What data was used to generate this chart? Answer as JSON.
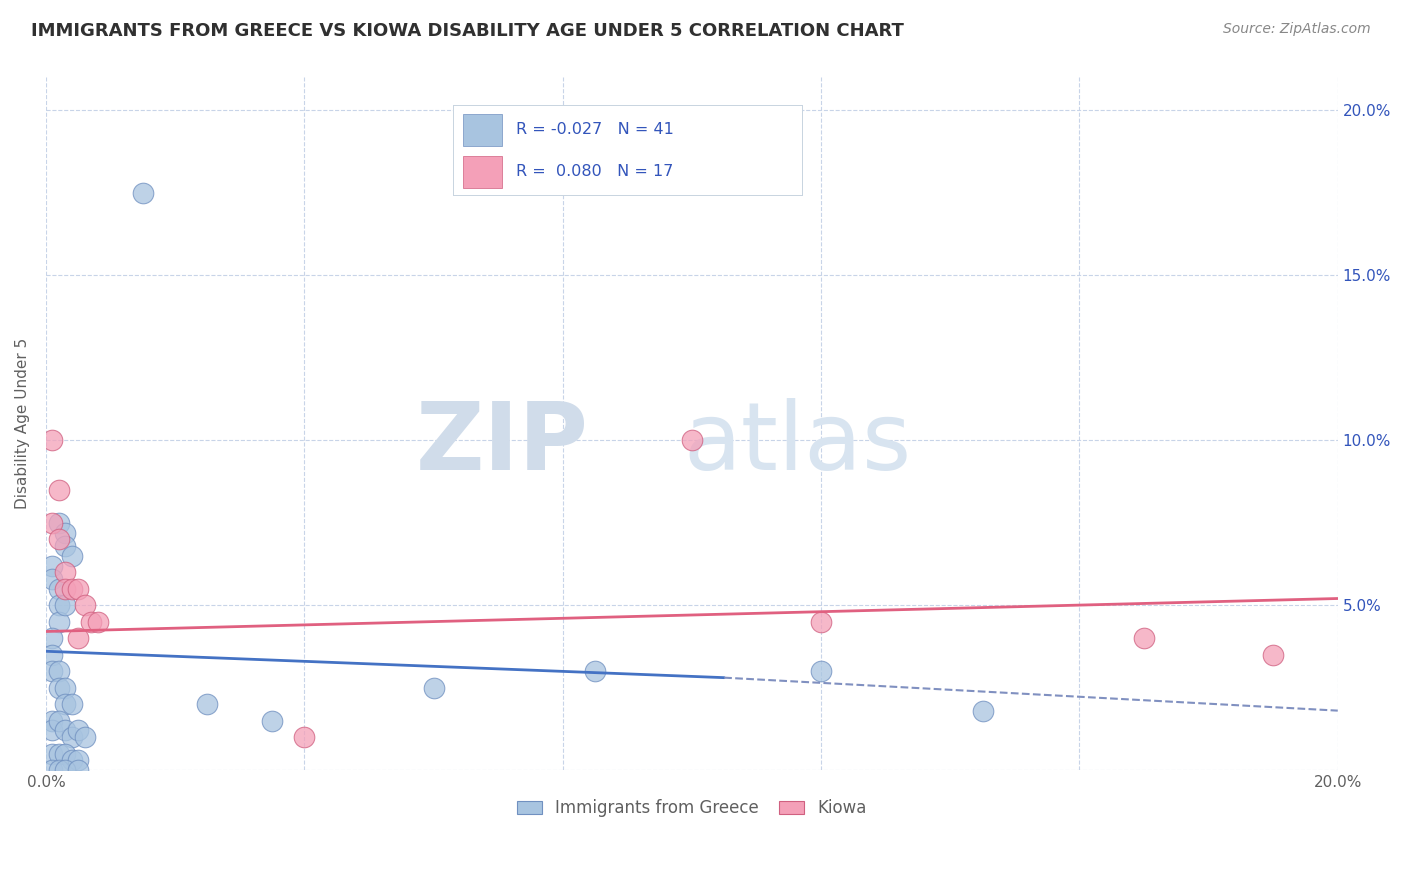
{
  "title": "IMMIGRANTS FROM GREECE VS KIOWA DISABILITY AGE UNDER 5 CORRELATION CHART",
  "source": "Source: ZipAtlas.com",
  "ylabel": "Disability Age Under 5",
  "xlim": [
    0.0,
    0.2
  ],
  "ylim": [
    0.0,
    0.21
  ],
  "x_ticks": [
    0.0,
    0.04,
    0.08,
    0.12,
    0.16,
    0.2
  ],
  "x_tick_labels": [
    "0.0%",
    "",
    "",
    "",
    "",
    "20.0%"
  ],
  "y_ticks_left": [
    0.0,
    0.05,
    0.1,
    0.15,
    0.2
  ],
  "y_tick_labels_left": [
    "",
    "",
    "",
    "",
    ""
  ],
  "y_ticks_right": [
    0.05,
    0.1,
    0.15,
    0.2
  ],
  "y_tick_labels_right": [
    "5.0%",
    "10.0%",
    "15.0%",
    "20.0%"
  ],
  "legend_bottom": [
    "Immigrants from Greece",
    "Kiowa"
  ],
  "scatter_blue": {
    "x": [
      0.015,
      0.002,
      0.003,
      0.003,
      0.004,
      0.001,
      0.001,
      0.002,
      0.002,
      0.002,
      0.003,
      0.001,
      0.001,
      0.001,
      0.002,
      0.002,
      0.003,
      0.003,
      0.004,
      0.001,
      0.001,
      0.002,
      0.003,
      0.004,
      0.005,
      0.001,
      0.002,
      0.003,
      0.004,
      0.005,
      0.006,
      0.001,
      0.002,
      0.003,
      0.005,
      0.025,
      0.035,
      0.06,
      0.085,
      0.12,
      0.145
    ],
    "y": [
      0.175,
      0.075,
      0.072,
      0.068,
      0.065,
      0.062,
      0.058,
      0.055,
      0.05,
      0.045,
      0.05,
      0.04,
      0.035,
      0.03,
      0.03,
      0.025,
      0.025,
      0.02,
      0.02,
      0.015,
      0.012,
      0.015,
      0.012,
      0.01,
      0.012,
      0.005,
      0.005,
      0.005,
      0.003,
      0.003,
      0.01,
      0.0,
      0.0,
      0.0,
      0.0,
      0.02,
      0.015,
      0.025,
      0.03,
      0.03,
      0.018
    ],
    "color": "#a8c4e0",
    "edge_color": "#7090c0",
    "R": -0.027,
    "N": 41
  },
  "scatter_pink": {
    "x": [
      0.001,
      0.002,
      0.001,
      0.002,
      0.003,
      0.003,
      0.004,
      0.005,
      0.005,
      0.006,
      0.007,
      0.008,
      0.04,
      0.1,
      0.12,
      0.17,
      0.19
    ],
    "y": [
      0.1,
      0.085,
      0.075,
      0.07,
      0.06,
      0.055,
      0.055,
      0.055,
      0.04,
      0.05,
      0.045,
      0.045,
      0.01,
      0.1,
      0.045,
      0.04,
      0.035
    ],
    "color": "#f4a0b8",
    "edge_color": "#d06080",
    "R": 0.08,
    "N": 17
  },
  "line_blue_solid": {
    "x": [
      0.0,
      0.105
    ],
    "y": [
      0.036,
      0.028
    ],
    "color": "#4472c4",
    "lw": 2.0
  },
  "line_blue_dashed": {
    "x": [
      0.105,
      0.2
    ],
    "y": [
      0.028,
      0.018
    ],
    "color": "#8090c0",
    "lw": 1.5
  },
  "line_pink": {
    "x": [
      0.0,
      0.2
    ],
    "y": [
      0.042,
      0.052
    ],
    "color": "#e06080",
    "lw": 2.0
  },
  "watermark_zip": "ZIP",
  "watermark_atlas": "atlas",
  "background_color": "#ffffff",
  "grid_color": "#c8d4e8",
  "title_color": "#303030",
  "r_value_color": "#3355bb",
  "tick_color": "#606060"
}
